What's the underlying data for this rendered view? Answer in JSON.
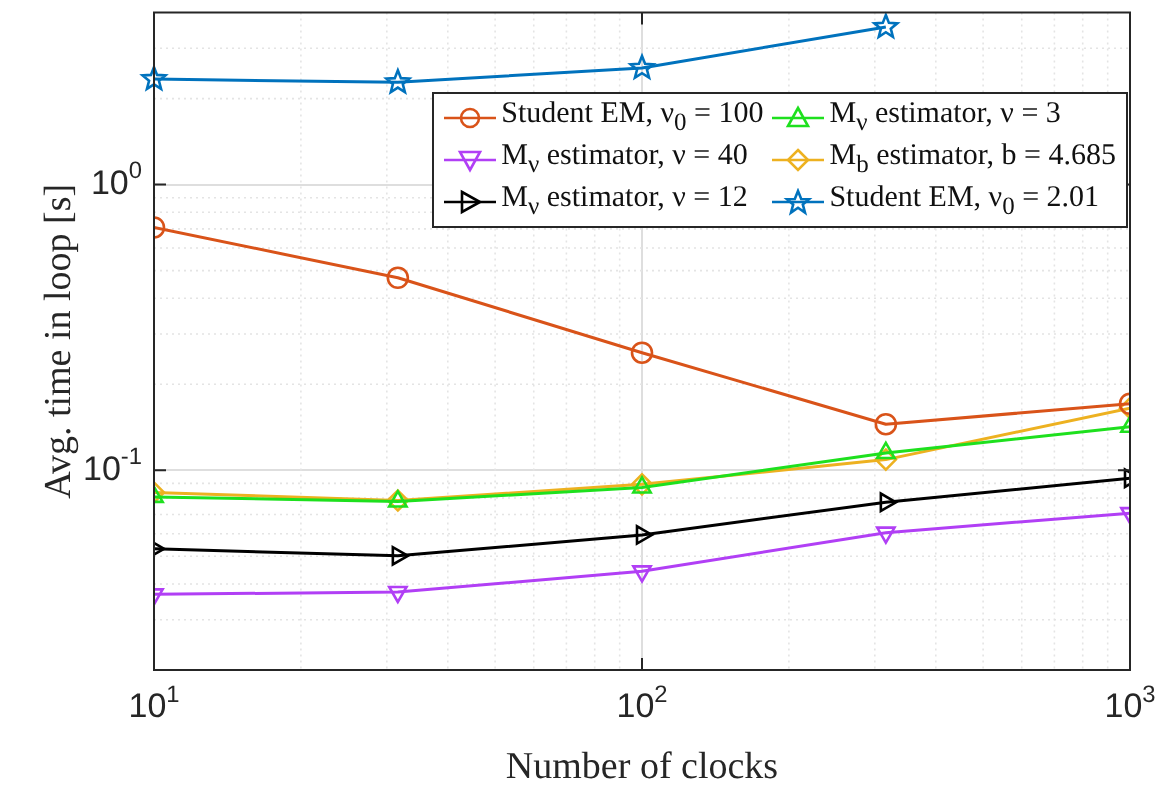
{
  "chart_data": {
    "type": "line",
    "xlabel": "Number of clocks",
    "ylabel": "Avg. time in loop [s]",
    "log": "xy",
    "x": [
      10,
      31.6,
      100,
      316,
      1000
    ],
    "xlim": [
      10,
      1000
    ],
    "xticks": [
      {
        "value": 10,
        "label": "10$^{1}$"
      },
      {
        "value": 100,
        "label": "10$^{2}$"
      },
      {
        "value": 1000,
        "label": "10$^{3}$"
      }
    ],
    "ylim": [
      0.02,
      4
    ],
    "yticks": [
      {
        "value": 0.1,
        "label": "10$^{-1}$"
      },
      {
        "value": 1,
        "label": "10$^{0}$"
      }
    ],
    "grid": true,
    "legend": "top right",
    "line_style": "solid",
    "series": [
      {
        "name": "Student EM, ν$_{0}$ = 100",
        "color": "#d95319",
        "marker": "circle",
        "values": [
          0.708,
          0.472,
          0.258,
          0.145,
          0.171
        ]
      },
      {
        "name": "M$_{ν}$ estimator, ν = 3",
        "color": "#1ee01e",
        "marker": "triangle",
        "values": [
          0.0807,
          0.0778,
          0.0871,
          0.115,
          0.142
        ]
      },
      {
        "name": "M$_{ν}$ estimator, ν = 40",
        "color": "#b13ff5",
        "marker": "triangle-down",
        "values": [
          0.0368,
          0.0375,
          0.0443,
          0.0605,
          0.0708
        ]
      },
      {
        "name": "M$_{b}$ estimator, b = 4.685",
        "color": "#edb120",
        "marker": "diamond",
        "values": [
          0.0836,
          0.0784,
          0.0893,
          0.109,
          0.165
        ]
      },
      {
        "name": "M$_{ν}$ estimator, ν = 12",
        "color": "#000000",
        "marker": "triangle-right",
        "values": [
          0.0531,
          0.0502,
          0.0594,
          0.0773,
          0.0938
        ]
      },
      {
        "name": "Student EM, ν$_{0}$ = 2.01",
        "color": "#0072bd",
        "marker": "star",
        "values": [
          2.34,
          2.28,
          2.56,
          3.56,
          null
        ]
      }
    ]
  }
}
